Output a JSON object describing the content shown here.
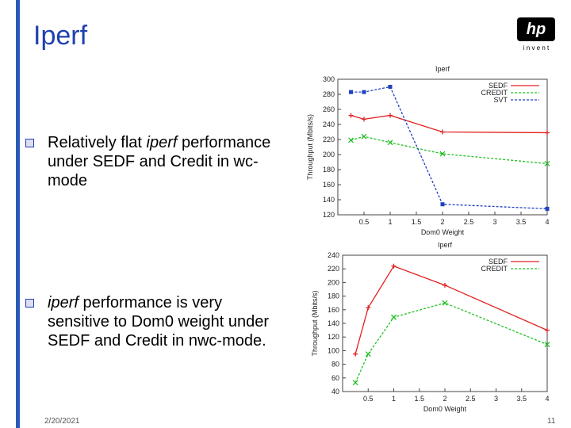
{
  "slide": {
    "title": "Iperf",
    "logo": {
      "mark": "hp",
      "tagline": "i n v e n t"
    },
    "bullets": [
      {
        "parts": [
          "Relatively flat ",
          "iperf",
          " performance under SEDF and Credit in wc-mode"
        ]
      },
      {
        "parts": [
          "iperf",
          " performance is very sensitive  to Dom0 weight under SEDF and Credit in nwc-mode."
        ]
      }
    ],
    "date": "2/20/2021",
    "page": "11"
  },
  "chart_data": [
    {
      "type": "line",
      "title": "Iperf",
      "xlabel": "Dom0 Weight",
      "ylabel": "Throughput (Mbits/s)",
      "x": [
        0.25,
        0.5,
        1,
        2,
        4
      ],
      "xlim": [
        0,
        4
      ],
      "xticks": [
        0.5,
        1,
        1.5,
        2,
        2.5,
        3,
        3.5,
        4
      ],
      "ylim": [
        120,
        300
      ],
      "yticks": [
        120,
        140,
        160,
        180,
        200,
        220,
        240,
        260,
        280,
        300
      ],
      "legend": "top-right",
      "series": [
        {
          "name": "SEDF",
          "color": "#e02020",
          "marker": "plus",
          "values": [
            252,
            247,
            252,
            230,
            229
          ]
        },
        {
          "name": "CREDIT",
          "color": "#22c022",
          "marker": "cross",
          "values": [
            219,
            224,
            216,
            201,
            188
          ]
        },
        {
          "name": "SVT",
          "color": "#2040c0",
          "marker": "square",
          "values": [
            283,
            283,
            290,
            134,
            128
          ]
        }
      ]
    },
    {
      "type": "line",
      "title": "Iperf",
      "xlabel": "Dom0 Weight",
      "ylabel": "Throughput (Mbits/s)",
      "x": [
        0.25,
        0.5,
        1,
        2,
        4
      ],
      "xlim": [
        0,
        4
      ],
      "xticks": [
        0.5,
        1,
        1.5,
        2,
        2.5,
        3,
        3.5,
        4
      ],
      "ylim": [
        40,
        240
      ],
      "yticks": [
        40,
        60,
        80,
        100,
        120,
        140,
        160,
        180,
        200,
        220,
        240
      ],
      "legend": "top-right",
      "series": [
        {
          "name": "SEDF",
          "color": "#e02020",
          "marker": "plus",
          "values": [
            95,
            163,
            224,
            196,
            130
          ]
        },
        {
          "name": "CREDIT",
          "color": "#22c022",
          "marker": "cross",
          "values": [
            53,
            95,
            149,
            170,
            109
          ]
        }
      ]
    }
  ]
}
